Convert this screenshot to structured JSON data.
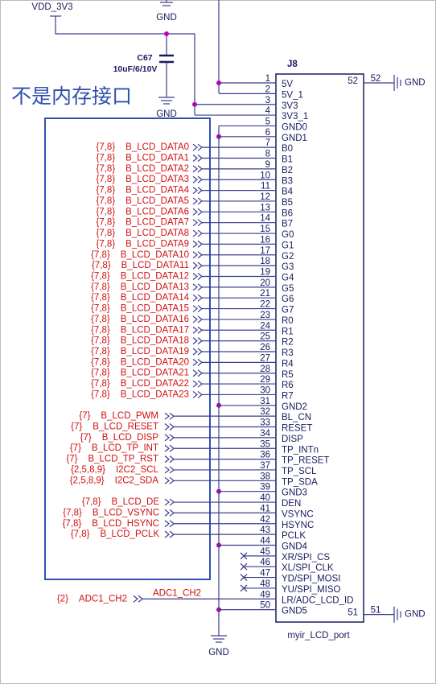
{
  "power": {
    "supply": "VDD_3V3",
    "ground": "GND"
  },
  "note": "不是内存接口",
  "capacitor": {
    "ref": "C67",
    "value": "10uF/6/10V"
  },
  "connector": {
    "ref": "J8",
    "part": "myir_LCD_port",
    "pins": [
      {
        "number": 1,
        "name": "5V"
      },
      {
        "number": 2,
        "name": "5V_1"
      },
      {
        "number": 3,
        "name": "3V3"
      },
      {
        "number": 4,
        "name": "3V3_1"
      },
      {
        "number": 5,
        "name": "GND0"
      },
      {
        "number": 6,
        "name": "GND1"
      },
      {
        "number": 7,
        "name": "B0",
        "net": {
          "sheets": "{7,8}",
          "label": "B_LCD_DATA0"
        }
      },
      {
        "number": 8,
        "name": "B1",
        "net": {
          "sheets": "{7,8}",
          "label": "B_LCD_DATA1"
        }
      },
      {
        "number": 9,
        "name": "B2",
        "net": {
          "sheets": "{7,8}",
          "label": "B_LCD_DATA2"
        }
      },
      {
        "number": 10,
        "name": "B3",
        "net": {
          "sheets": "{7,8}",
          "label": "B_LCD_DATA3"
        }
      },
      {
        "number": 11,
        "name": "B4",
        "net": {
          "sheets": "{7,8}",
          "label": "B_LCD_DATA4"
        }
      },
      {
        "number": 12,
        "name": "B5",
        "net": {
          "sheets": "{7,8}",
          "label": "B_LCD_DATA5"
        }
      },
      {
        "number": 13,
        "name": "B6",
        "net": {
          "sheets": "{7,8}",
          "label": "B_LCD_DATA6"
        }
      },
      {
        "number": 14,
        "name": "B7",
        "net": {
          "sheets": "{7,8}",
          "label": "B_LCD_DATA7"
        }
      },
      {
        "number": 15,
        "name": "G0",
        "net": {
          "sheets": "{7,8}",
          "label": "B_LCD_DATA8"
        }
      },
      {
        "number": 16,
        "name": "G1",
        "net": {
          "sheets": "{7,8}",
          "label": "B_LCD_DATA9"
        }
      },
      {
        "number": 17,
        "name": "G2",
        "net": {
          "sheets": "{7,8}",
          "label": "B_LCD_DATA10"
        }
      },
      {
        "number": 18,
        "name": "G3",
        "net": {
          "sheets": "{7,8}",
          "label": "B_LCD_DATA11"
        }
      },
      {
        "number": 19,
        "name": "G4",
        "net": {
          "sheets": "{7,8}",
          "label": "B_LCD_DATA12"
        }
      },
      {
        "number": 20,
        "name": "G5",
        "net": {
          "sheets": "{7,8}",
          "label": "B_LCD_DATA13"
        }
      },
      {
        "number": 21,
        "name": "G6",
        "net": {
          "sheets": "{7,8}",
          "label": "B_LCD_DATA14"
        }
      },
      {
        "number": 22,
        "name": "G7",
        "net": {
          "sheets": "{7,8}",
          "label": "B_LCD_DATA15"
        }
      },
      {
        "number": 23,
        "name": "R0",
        "net": {
          "sheets": "{7,8}",
          "label": "B_LCD_DATA16"
        }
      },
      {
        "number": 24,
        "name": "R1",
        "net": {
          "sheets": "{7,8}",
          "label": "B_LCD_DATA17"
        }
      },
      {
        "number": 25,
        "name": "R2",
        "net": {
          "sheets": "{7,8}",
          "label": "B_LCD_DATA18"
        }
      },
      {
        "number": 26,
        "name": "R3",
        "net": {
          "sheets": "{7,8}",
          "label": "B_LCD_DATA19"
        }
      },
      {
        "number": 27,
        "name": "R4",
        "net": {
          "sheets": "{7,8}",
          "label": "B_LCD_DATA20"
        }
      },
      {
        "number": 28,
        "name": "R5",
        "net": {
          "sheets": "{7,8}",
          "label": "B_LCD_DATA21"
        }
      },
      {
        "number": 29,
        "name": "R6",
        "net": {
          "sheets": "{7,8}",
          "label": "B_LCD_DATA22"
        }
      },
      {
        "number": 30,
        "name": "R7",
        "net": {
          "sheets": "{7,8}",
          "label": "B_LCD_DATA23"
        }
      },
      {
        "number": 31,
        "name": "GND2"
      },
      {
        "number": 32,
        "name": "BL_CN",
        "net": {
          "sheets": "{7}",
          "label": "B_LCD_PWM"
        }
      },
      {
        "number": 33,
        "name": "RESET",
        "net": {
          "sheets": "{7}",
          "label": "B_LCD_RESET"
        }
      },
      {
        "number": 34,
        "name": "DISP",
        "net": {
          "sheets": "{7}",
          "label": "B_LCD_DISP"
        }
      },
      {
        "number": 35,
        "name": "TP_INTn",
        "net": {
          "sheets": "{7}",
          "label": "B_LCD_TP_INT"
        }
      },
      {
        "number": 36,
        "name": "TP_RESET",
        "net": {
          "sheets": "{7}",
          "label": "B_LCD_TP_RST"
        }
      },
      {
        "number": 37,
        "name": "TP_SCL",
        "net": {
          "sheets": "{2,5,8,9}",
          "label": "I2C2_SCL"
        }
      },
      {
        "number": 38,
        "name": "TP_SDA",
        "net": {
          "sheets": "{2,5,8,9}",
          "label": "I2C2_SDA"
        }
      },
      {
        "number": 39,
        "name": "GND3"
      },
      {
        "number": 40,
        "name": "DEN",
        "net": {
          "sheets": "{7,8}",
          "label": "B_LCD_DE"
        }
      },
      {
        "number": 41,
        "name": "VSYNC",
        "net": {
          "sheets": "{7,8}",
          "label": "B_LCD_VSYNC"
        }
      },
      {
        "number": 42,
        "name": "HSYNC",
        "net": {
          "sheets": "{7,8}",
          "label": "B_LCD_HSYNC"
        }
      },
      {
        "number": 43,
        "name": "PCLK",
        "net": {
          "sheets": "{7,8}",
          "label": "B_LCD_PCLK"
        }
      },
      {
        "number": 44,
        "name": "GND4"
      },
      {
        "number": 45,
        "name": "XR/SPI_CS",
        "no_connect": true
      },
      {
        "number": 46,
        "name": "XL/SPI_CLK",
        "no_connect": true
      },
      {
        "number": 47,
        "name": "YD/SPI_MOSI",
        "no_connect": true
      },
      {
        "number": 48,
        "name": "YU/SPI_MISO",
        "no_connect": true
      },
      {
        "number": 49,
        "name": "LR/ADC_LCD_ID",
        "net": {
          "sheets": "{2}",
          "label": "ADC1_CH2",
          "wire_label": "ADC1_CH2"
        }
      },
      {
        "number": 50,
        "name": "GND5"
      }
    ],
    "shell_pins": [
      {
        "number": 52
      },
      {
        "number": 51
      }
    ]
  }
}
